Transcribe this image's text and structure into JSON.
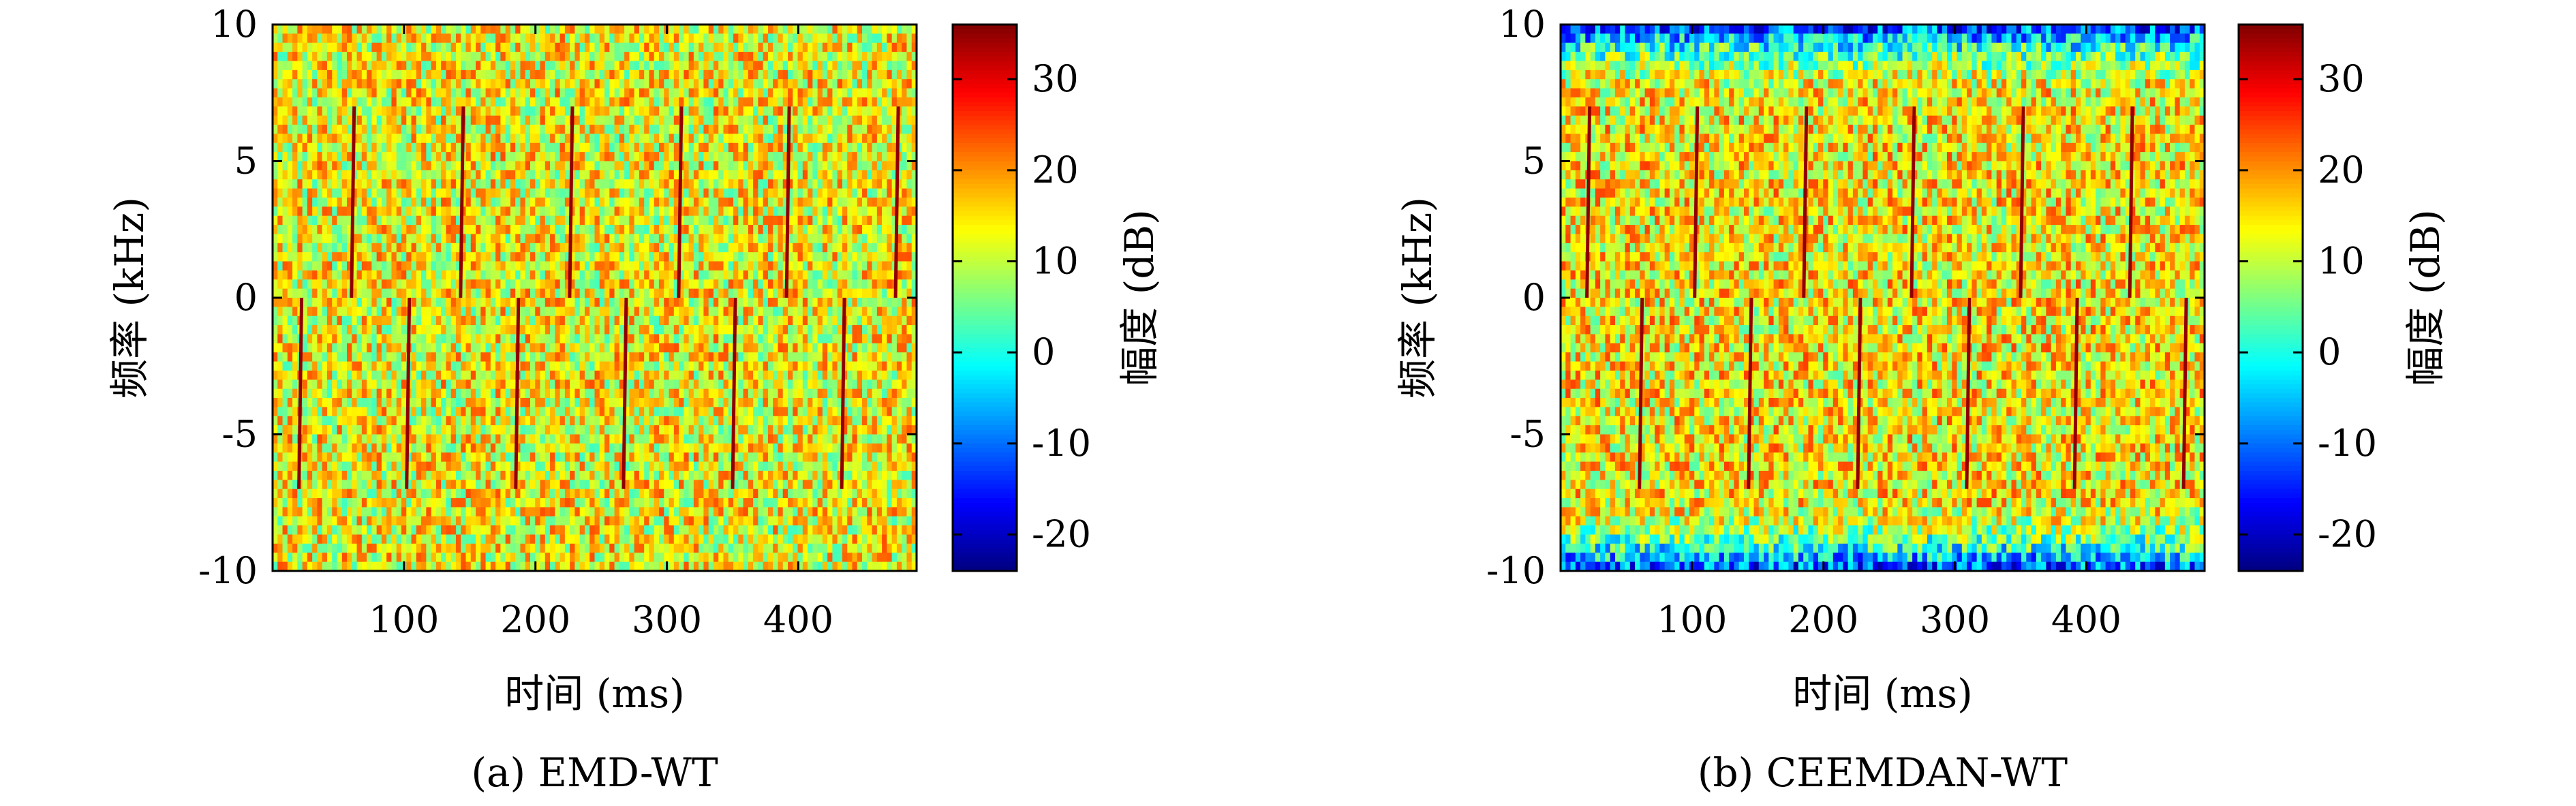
{
  "chart_data": [
    {
      "type": "heatmap",
      "caption": "(a) EMD-WT",
      "xlabel": "时间 (ms)",
      "ylabel": "频率 (kHz)",
      "xlim": [
        0,
        490
      ],
      "ylim": [
        -10,
        10
      ],
      "xticks": [
        100,
        200,
        300,
        400
      ],
      "yticks": [
        -10,
        -5,
        0,
        5,
        10
      ],
      "colorbar": {
        "label": "幅度 (dB)",
        "ticks": [
          -20,
          -10,
          0,
          10,
          20,
          30
        ],
        "range": [
          -24,
          36
        ],
        "colormap": "jet",
        "colors": [
          "#00007f",
          "#0000ff",
          "#00ffff",
          "#ffff00",
          "#ff0000",
          "#7f0000"
        ]
      },
      "background_level_db": 13,
      "edge_attenuation": false,
      "chirps": [
        {
          "time_ms": 20,
          "f_start_khz": -7,
          "f_end_khz": 0,
          "level_db": 35
        },
        {
          "time_ms": 60,
          "f_start_khz": 0,
          "f_end_khz": 7,
          "level_db": 35
        },
        {
          "time_ms": 102,
          "f_start_khz": -7,
          "f_end_khz": 0,
          "level_db": 35
        },
        {
          "time_ms": 143,
          "f_start_khz": 0,
          "f_end_khz": 7,
          "level_db": 35
        },
        {
          "time_ms": 185,
          "f_start_khz": -7,
          "f_end_khz": 0,
          "level_db": 35
        },
        {
          "time_ms": 226,
          "f_start_khz": 0,
          "f_end_khz": 7,
          "level_db": 35
        },
        {
          "time_ms": 267,
          "f_start_khz": -7,
          "f_end_khz": 0,
          "level_db": 35
        },
        {
          "time_ms": 309,
          "f_start_khz": 0,
          "f_end_khz": 7,
          "level_db": 35
        },
        {
          "time_ms": 350,
          "f_start_khz": -7,
          "f_end_khz": 0,
          "level_db": 35
        },
        {
          "time_ms": 391,
          "f_start_khz": 0,
          "f_end_khz": 7,
          "level_db": 35
        },
        {
          "time_ms": 433,
          "f_start_khz": -7,
          "f_end_khz": 0,
          "level_db": 35
        },
        {
          "time_ms": 474,
          "f_start_khz": 0,
          "f_end_khz": 7,
          "level_db": 35
        }
      ]
    },
    {
      "type": "heatmap",
      "caption": "(b) CEEMDAN-WT",
      "xlabel": "时间 (ms)",
      "ylabel": "频率 (kHz)",
      "xlim": [
        0,
        490
      ],
      "ylim": [
        -10,
        10
      ],
      "xticks": [
        100,
        200,
        300,
        400
      ],
      "yticks": [
        -10,
        -5,
        0,
        5,
        10
      ],
      "colorbar": {
        "label": "幅度 (dB)",
        "ticks": [
          -20,
          -10,
          0,
          10,
          20,
          30
        ],
        "range": [
          -24,
          36
        ],
        "colormap": "jet",
        "colors": [
          "#00007f",
          "#0000ff",
          "#00ffff",
          "#ffff00",
          "#ff0000",
          "#7f0000"
        ]
      },
      "background_level_db": 14,
      "edge_attenuation": true,
      "chirps": [
        {
          "time_ms": 20,
          "f_start_khz": 0,
          "f_end_khz": 7,
          "level_db": 35
        },
        {
          "time_ms": 60,
          "f_start_khz": -7,
          "f_end_khz": 0,
          "level_db": 35
        },
        {
          "time_ms": 102,
          "f_start_khz": 0,
          "f_end_khz": 7,
          "level_db": 35
        },
        {
          "time_ms": 143,
          "f_start_khz": -7,
          "f_end_khz": 0,
          "level_db": 35
        },
        {
          "time_ms": 185,
          "f_start_khz": 0,
          "f_end_khz": 7,
          "level_db": 35
        },
        {
          "time_ms": 226,
          "f_start_khz": -7,
          "f_end_khz": 0,
          "level_db": 35
        },
        {
          "time_ms": 267,
          "f_start_khz": 0,
          "f_end_khz": 7,
          "level_db": 35
        },
        {
          "time_ms": 309,
          "f_start_khz": -7,
          "f_end_khz": 0,
          "level_db": 35
        },
        {
          "time_ms": 350,
          "f_start_khz": 0,
          "f_end_khz": 7,
          "level_db": 35
        },
        {
          "time_ms": 391,
          "f_start_khz": -7,
          "f_end_khz": 0,
          "level_db": 35
        },
        {
          "time_ms": 433,
          "f_start_khz": 0,
          "f_end_khz": 7,
          "level_db": 35
        },
        {
          "time_ms": 474,
          "f_start_khz": -7,
          "f_end_khz": 0,
          "level_db": 35
        }
      ]
    }
  ]
}
